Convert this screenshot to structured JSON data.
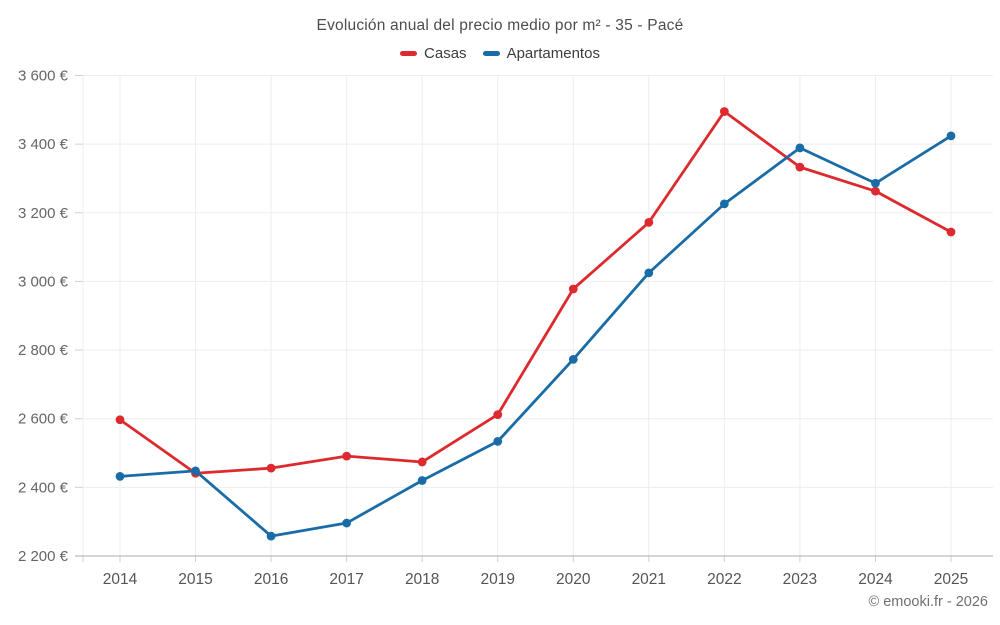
{
  "chart_data": {
    "type": "line",
    "title": "Evolución anual del precio medio por m² - 35 - Pacé",
    "categories": [
      "2014",
      "2015",
      "2016",
      "2017",
      "2018",
      "2019",
      "2020",
      "2021",
      "2022",
      "2023",
      "2024",
      "2025"
    ],
    "series": [
      {
        "name": "Casas",
        "color": "#dd2a2e",
        "values": [
          2597,
          2441,
          2456,
          2491,
          2474,
          2612,
          2978,
          3172,
          3495,
          3333,
          3263,
          3144
        ]
      },
      {
        "name": "Apartamentos",
        "color": "#1a6ca6",
        "values": [
          2432,
          2448,
          2258,
          2296,
          2420,
          2534,
          2773,
          3025,
          3226,
          3389,
          3286,
          3424
        ]
      }
    ],
    "ylim": [
      2200,
      3600
    ],
    "ytick_step": 200,
    "ytick_labels": [
      "2 200 €",
      "2 400 €",
      "2 600 €",
      "2 800 €",
      "3 000 €",
      "3 200 €",
      "3 400 €",
      "3 600 €"
    ],
    "xlabel": "",
    "ylabel": "",
    "grid": true,
    "legend_position": "top",
    "marker": "circle",
    "footer": "© emooki.fr - 2026",
    "colors": {
      "grid": "#ededed",
      "axis": "#ababab",
      "tick": "#cfcfcf",
      "axis_text": "#666666",
      "title_text": "#4d4d4d"
    }
  }
}
